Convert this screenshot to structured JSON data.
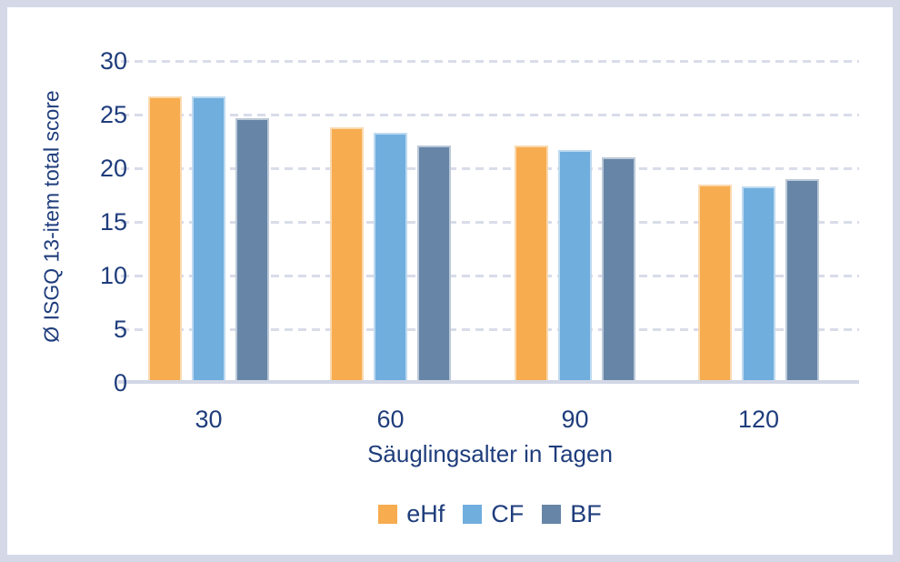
{
  "chart_data": {
    "type": "bar",
    "title": "",
    "categories": [
      "30",
      "60",
      "90",
      "120"
    ],
    "series": [
      {
        "name": "eHf",
        "color": "#F6AC4F",
        "values": [
          26.7,
          23.8,
          22.1,
          18.5
        ]
      },
      {
        "name": "CF",
        "color": "#70AEDE",
        "values": [
          26.7,
          23.3,
          21.7,
          18.3
        ]
      },
      {
        "name": "BF",
        "color": "#6785A7",
        "values": [
          24.7,
          22.1,
          21.0,
          19.0
        ]
      }
    ],
    "xlabel": "Säuglingsalter in Tagen",
    "ylabel": "Ø ISGQ 13-item total score",
    "ylim": [
      0,
      30
    ],
    "yticks": [
      0,
      5,
      10,
      15,
      20,
      25,
      30
    ],
    "grid": "horizontal-dashed",
    "legend_position": "bottom",
    "legend": [
      "eHf",
      "CF",
      "BF"
    ]
  },
  "colors": {
    "accent_orange": "#F6AC4F",
    "accent_blue": "#70AEDE",
    "accent_slate": "#6785A7",
    "text_navy": "#1F3D7C",
    "gridline": "#D9DCE9",
    "axis_line": "#D2D7E6",
    "frame_border": "#D5D8E7",
    "background": "#FFFFFF"
  }
}
